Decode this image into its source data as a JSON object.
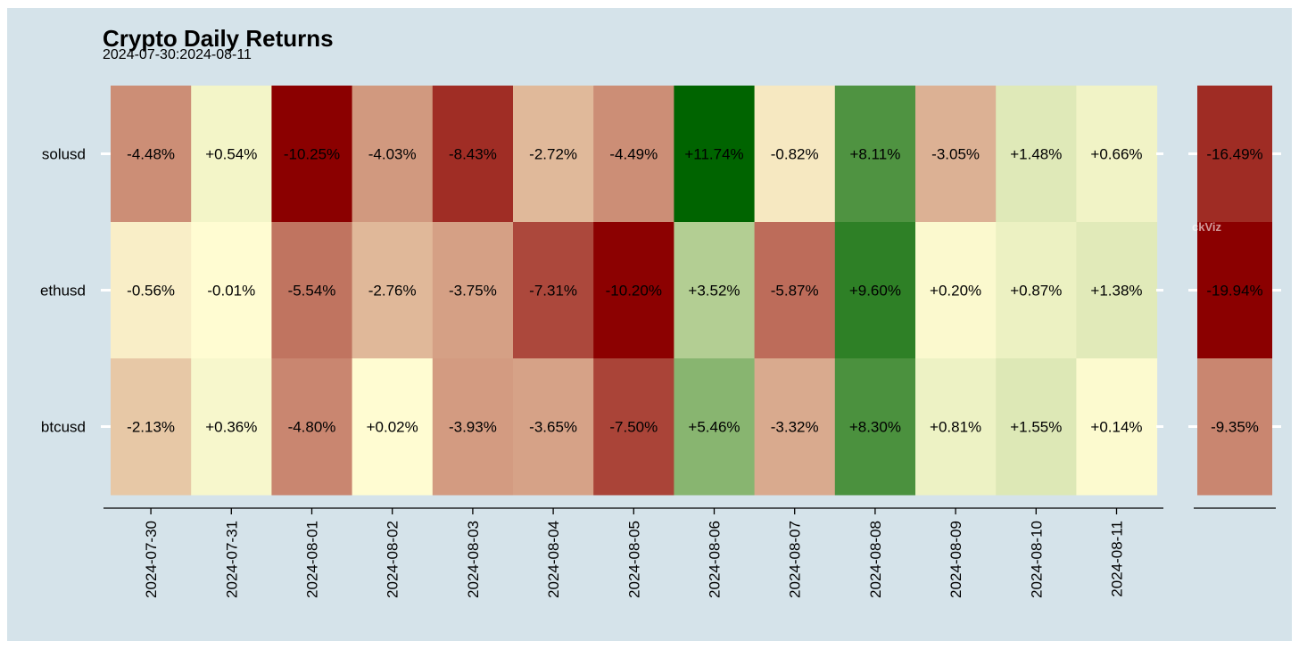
{
  "title": "Crypto Daily Returns",
  "subtitle": "2024-07-30:2024-08-11",
  "watermark": "ckViz",
  "chart_data": {
    "type": "heatmap",
    "title": "Crypto Daily Returns",
    "subtitle": "2024-07-30:2024-08-11",
    "categories": [
      "2024-07-30",
      "2024-07-31",
      "2024-08-01",
      "2024-08-02",
      "2024-08-03",
      "2024-08-04",
      "2024-08-05",
      "2024-08-06",
      "2024-08-07",
      "2024-08-08",
      "2024-08-09",
      "2024-08-10",
      "2024-08-11"
    ],
    "rows": [
      "solusd",
      "ethusd",
      "btcusd"
    ],
    "values": [
      [
        -4.48,
        0.54,
        -10.25,
        -4.03,
        -8.43,
        -2.72,
        -4.49,
        11.74,
        -0.82,
        8.11,
        -3.05,
        1.48,
        0.66
      ],
      [
        -0.56,
        -0.01,
        -5.54,
        -2.76,
        -3.75,
        -7.31,
        -10.2,
        3.52,
        -5.87,
        9.6,
        0.2,
        0.87,
        1.38
      ],
      [
        -2.13,
        0.36,
        -4.8,
        0.02,
        -3.93,
        -3.65,
        -7.5,
        5.46,
        -3.32,
        8.3,
        0.81,
        1.55,
        0.14
      ]
    ],
    "labels": [
      [
        "-4.48%",
        "+0.54%",
        "-10.25%",
        "-4.03%",
        "-8.43%",
        "-2.72%",
        "-4.49%",
        "+11.74%",
        "-0.82%",
        "+8.11%",
        "-3.05%",
        "+1.48%",
        "+0.66%"
      ],
      [
        "-0.56%",
        "-0.01%",
        "-5.54%",
        "-2.76%",
        "-3.75%",
        "-7.31%",
        "-10.20%",
        "+3.52%",
        "-5.87%",
        "+9.60%",
        "+0.20%",
        "+0.87%",
        "+1.38%"
      ],
      [
        "-2.13%",
        "+0.36%",
        "-4.80%",
        "+0.02%",
        "-3.93%",
        "-3.65%",
        "-7.50%",
        "+5.46%",
        "-3.32%",
        "+8.30%",
        "+0.81%",
        "+1.55%",
        "+0.14%"
      ]
    ],
    "totals": [
      -16.49,
      -19.94,
      -9.35
    ],
    "total_labels": [
      "-16.49%",
      "-19.94%",
      "-9.35%"
    ],
    "colors": {
      "background": "#d5e3ea",
      "negative_max": "#8b0000",
      "neutral": "#fffcd2",
      "positive_max": "#006400"
    }
  }
}
